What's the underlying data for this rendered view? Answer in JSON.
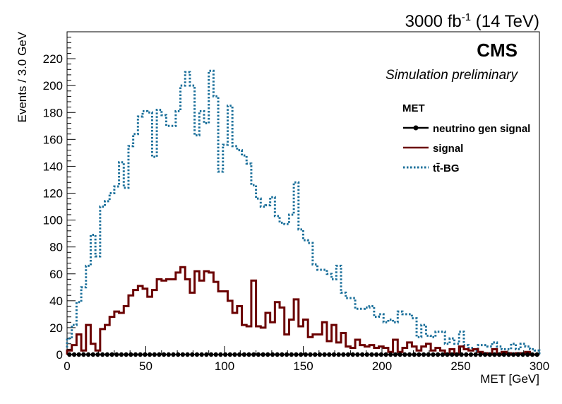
{
  "header": {
    "lumi_prefix": "3000 fb",
    "lumi_exp": "-1",
    "lumi_suffix": " (14 TeV)"
  },
  "cms": {
    "label": "CMS",
    "sublabel": "Simulation preliminary"
  },
  "legend": {
    "title": "MET",
    "placement": "top-right",
    "entries": [
      "neutrino gen signal",
      "signal",
      "tt̄-BG"
    ]
  },
  "colors": {
    "signal": "#6b0000",
    "background": "#1a6f9a",
    "gen": "#000000"
  },
  "chart_data": {
    "type": "line",
    "style": "step-histogram",
    "title": "",
    "xlabel": "MET [GeV]",
    "ylabel": "Events / 3.0 GeV",
    "xlim": [
      0,
      300
    ],
    "ylim": [
      0,
      240
    ],
    "bin_width": 3,
    "x_ticks": [
      0,
      50,
      100,
      150,
      200,
      250,
      300
    ],
    "y_ticks": [
      0,
      20,
      40,
      60,
      80,
      100,
      120,
      140,
      160,
      180,
      200,
      220
    ],
    "grid": false,
    "series": [
      {
        "name": "neutrino gen signal",
        "style": "markers",
        "values": [
          0,
          0,
          0,
          0,
          0,
          0,
          0,
          0,
          0,
          0,
          0,
          0,
          0,
          0,
          0,
          0,
          0,
          0,
          0,
          0,
          0,
          0,
          0,
          0,
          0,
          0,
          0,
          0,
          0,
          0,
          0,
          0,
          0,
          0,
          0,
          0,
          0,
          0,
          0,
          0,
          0,
          0,
          0,
          0,
          0,
          0,
          0,
          0,
          0,
          0,
          0,
          0,
          0,
          0,
          0,
          0,
          0,
          0,
          0,
          0,
          0,
          0,
          0,
          0,
          0,
          0,
          0,
          0,
          0,
          0,
          0,
          0,
          0,
          0,
          0,
          0,
          0,
          0,
          0,
          0,
          0,
          0,
          0,
          0,
          0,
          0,
          0,
          0,
          0,
          0,
          0,
          0,
          0,
          0,
          0,
          0,
          0,
          0,
          0,
          0
        ]
      },
      {
        "name": "signal",
        "style": "solid",
        "values": [
          3,
          7,
          15,
          3,
          22,
          8,
          3,
          19,
          22,
          28,
          32,
          31,
          36,
          44,
          48,
          51,
          49,
          43,
          48,
          56,
          55,
          56,
          56,
          61,
          65,
          56,
          46,
          62,
          55,
          62,
          61,
          54,
          47,
          47,
          40,
          31,
          36,
          22,
          21,
          55,
          21,
          20,
          31,
          24,
          39,
          35,
          15,
          26,
          41,
          21,
          26,
          13,
          15,
          15,
          24,
          10,
          22,
          9,
          16,
          6,
          5,
          11,
          7,
          6,
          7,
          5,
          6,
          5,
          2,
          11,
          2,
          5,
          9,
          6,
          3,
          6,
          8,
          3,
          5,
          3,
          0,
          4,
          0,
          6,
          4,
          3,
          4,
          2,
          1,
          0,
          4,
          0,
          2,
          1,
          0,
          1,
          1,
          2,
          0,
          0
        ]
      },
      {
        "name": "tt̄-BG",
        "style": "dotted",
        "values": [
          12,
          22,
          39,
          50,
          66,
          89,
          73,
          110,
          114,
          120,
          125,
          143,
          124,
          155,
          164,
          177,
          181,
          180,
          147,
          182,
          178,
          170,
          170,
          181,
          200,
          210,
          200,
          163,
          181,
          172,
          211,
          192,
          136,
          156,
          185,
          155,
          152,
          148,
          142,
          126,
          116,
          110,
          111,
          117,
          103,
          98,
          97,
          104,
          128,
          93,
          85,
          83,
          67,
          63,
          63,
          60,
          56,
          66,
          46,
          42,
          42,
          34,
          34,
          35,
          36,
          28,
          30,
          24,
          26,
          24,
          32,
          30,
          30,
          27,
          13,
          22,
          14,
          13,
          17,
          17,
          8,
          12,
          8,
          17,
          7,
          5,
          3,
          7,
          7,
          6,
          9,
          6,
          4,
          4,
          8,
          4,
          8,
          6,
          4,
          3
        ]
      }
    ]
  }
}
